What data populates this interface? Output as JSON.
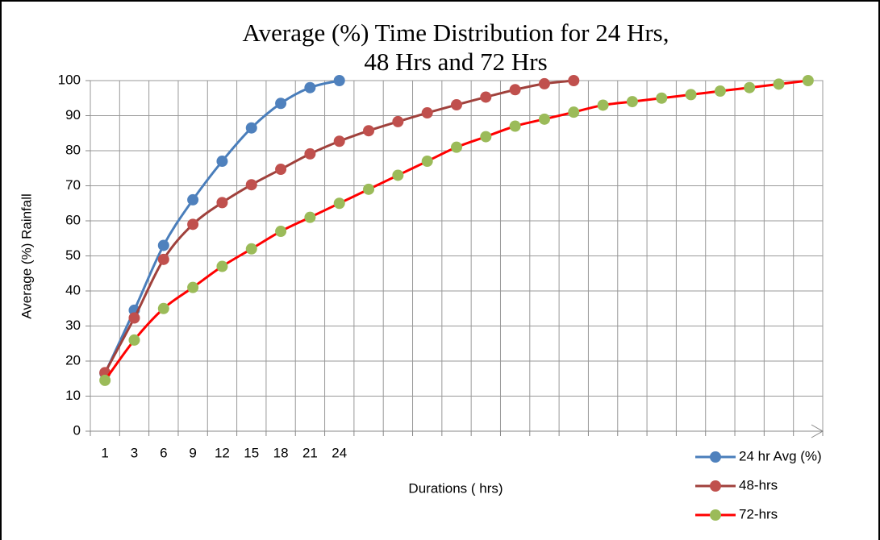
{
  "chart_data": {
    "type": "line",
    "title": [
      "Average (%) Time Distribution for 24 Hrs,",
      "48 Hrs and 72 Hrs"
    ],
    "x_label": "Durations ( hrs)",
    "y_label": "Average (%) Rainfall",
    "categories": [
      1,
      3,
      6,
      9,
      12,
      15,
      18,
      21,
      24,
      null,
      null,
      null,
      null,
      null,
      null,
      null,
      null,
      null,
      null,
      null,
      null,
      null,
      null,
      null,
      null
    ],
    "ylim": [
      0,
      100
    ],
    "yticks": [
      0,
      10,
      20,
      30,
      40,
      50,
      60,
      70,
      80,
      90,
      100
    ],
    "grid": true,
    "legend": "bottom-right",
    "series": [
      {
        "name": "24 hr Avg (%)",
        "color": "#4a7ebb",
        "marker_color": "#4f81bd",
        "values": [
          16.5,
          34.5,
          53,
          66,
          77,
          86.5,
          93.5,
          98,
          100,
          null,
          null,
          null,
          null,
          null,
          null,
          null,
          null,
          null,
          null,
          null,
          null,
          null,
          null,
          null,
          null
        ]
      },
      {
        "name": "48-hrs",
        "color": "#a0413c",
        "marker_color": "#c0504d",
        "values": [
          16.7,
          32.3,
          49,
          59,
          65.2,
          70.3,
          74.7,
          79.1,
          82.7,
          85.7,
          88.3,
          90.8,
          93.1,
          95.3,
          97.4,
          99.1,
          100,
          null,
          null,
          null,
          null,
          null,
          null,
          null,
          null
        ]
      },
      {
        "name": "72-hrs",
        "color": "#ff0000",
        "marker_color": "#9bbb59",
        "values": [
          14.5,
          26,
          35,
          41,
          47,
          52,
          57,
          61,
          65,
          69,
          73,
          77,
          81,
          84,
          87,
          89,
          91,
          93,
          94,
          95,
          96,
          97,
          98,
          99,
          100
        ]
      }
    ]
  }
}
